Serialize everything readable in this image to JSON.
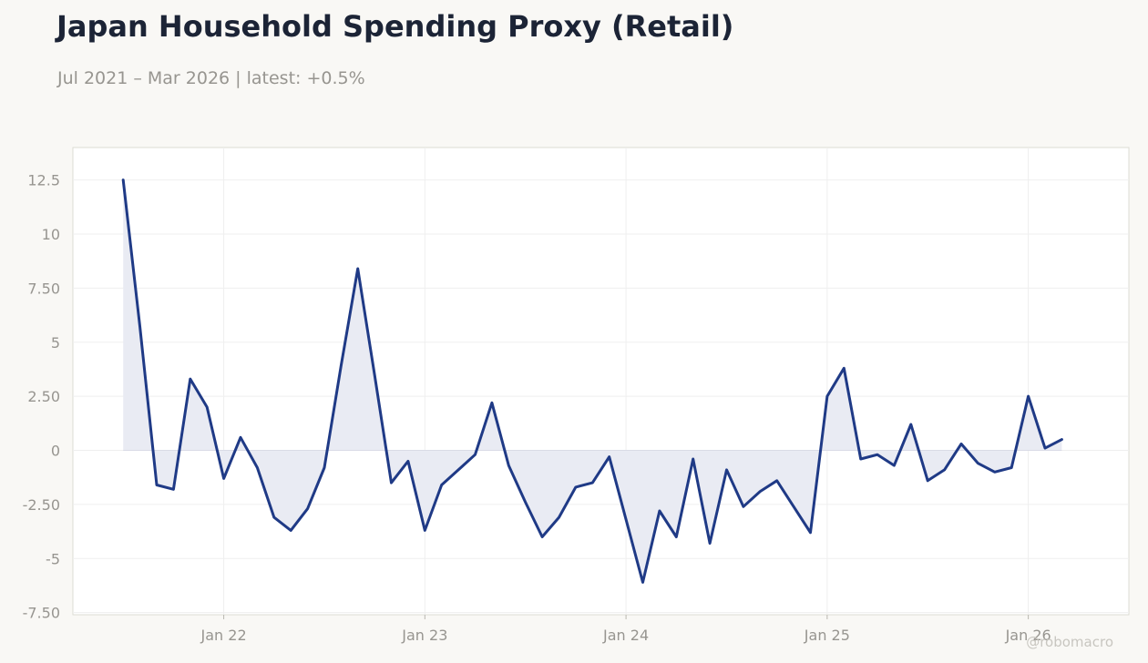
{
  "header": {
    "title": "Japan Household Spending Proxy (Retail)",
    "subtitle": "Jul 2021 – Mar 2026 | latest: +0.5%"
  },
  "credit": "@robomacro",
  "colors": {
    "line": "#1f3a86",
    "fill": "#e9ebf3",
    "grid": "#efefef",
    "plot_bg": "#ffffff",
    "plot_border": "#dcdcd4",
    "zero_line": "#d9dbe6"
  },
  "chart_data": {
    "type": "area",
    "title": "Japan Household Spending Proxy (Retail)",
    "x_start": "2021-07",
    "x_end": "2026-03",
    "x_ticks": [
      {
        "date": "2022-01",
        "label": "Jan 22"
      },
      {
        "date": "2023-01",
        "label": "Jan 23"
      },
      {
        "date": "2024-01",
        "label": "Jan 24"
      },
      {
        "date": "2025-01",
        "label": "Jan 25"
      },
      {
        "date": "2026-01",
        "label": "Jan 26"
      }
    ],
    "y_ticks": [
      {
        "value": 12.5,
        "label": "12.5"
      },
      {
        "value": 10,
        "label": "10"
      },
      {
        "value": 7.5,
        "label": "7.50"
      },
      {
        "value": 5,
        "label": "5"
      },
      {
        "value": 2.5,
        "label": "2.50"
      },
      {
        "value": 0,
        "label": "0"
      },
      {
        "value": -2.5,
        "label": "-2.50"
      },
      {
        "value": -5,
        "label": "-5"
      },
      {
        "value": -7.5,
        "label": "-7.50"
      }
    ],
    "ylim": [
      -7.6,
      14.0
    ],
    "xlim": [
      "2021-04",
      "2026-07"
    ],
    "grid": true,
    "legend": "none",
    "series": [
      {
        "dates": [
          "2021-07",
          "2021-08",
          "2021-09",
          "2021-10",
          "2021-11",
          "2021-12",
          "2022-01",
          "2022-02",
          "2022-03",
          "2022-04",
          "2022-05",
          "2022-06",
          "2022-07",
          "2022-08",
          "2022-09",
          "2022-10",
          "2022-11",
          "2022-12",
          "2023-01",
          "2023-02",
          "2023-03",
          "2023-04",
          "2023-05",
          "2023-06",
          "2023-07",
          "2023-08",
          "2023-09",
          "2023-10",
          "2023-11",
          "2023-12",
          "2024-01",
          "2024-02",
          "2024-03",
          "2024-04",
          "2024-05",
          "2024-06",
          "2024-07",
          "2024-08",
          "2024-09",
          "2024-10",
          "2024-11",
          "2024-12",
          "2025-01",
          "2025-02",
          "2025-03",
          "2025-04",
          "2025-05",
          "2025-06",
          "2025-07",
          "2025-08",
          "2025-09",
          "2025-10",
          "2025-11",
          "2025-12",
          "2026-01",
          "2026-02",
          "2026-03"
        ],
        "values": [
          12.5,
          5.7,
          -1.6,
          -1.8,
          3.3,
          2.0,
          -1.3,
          0.6,
          -0.8,
          -3.1,
          -3.7,
          -2.7,
          -0.8,
          3.9,
          8.4,
          3.5,
          -1.5,
          -0.5,
          -3.7,
          -1.6,
          -0.9,
          -0.2,
          2.2,
          -0.7,
          -2.4,
          -4.0,
          -3.1,
          -1.7,
          -1.5,
          -0.3,
          -3.2,
          -6.1,
          -2.8,
          -4.0,
          -0.4,
          -4.3,
          -0.9,
          -2.6,
          -1.9,
          -1.4,
          -2.6,
          -3.8,
          2.5,
          3.8,
          -0.4,
          -0.2,
          -0.7,
          1.2,
          -1.4,
          -0.9,
          0.3,
          -0.6,
          -1.0,
          -0.8,
          2.5,
          0.1,
          0.5
        ]
      }
    ]
  }
}
